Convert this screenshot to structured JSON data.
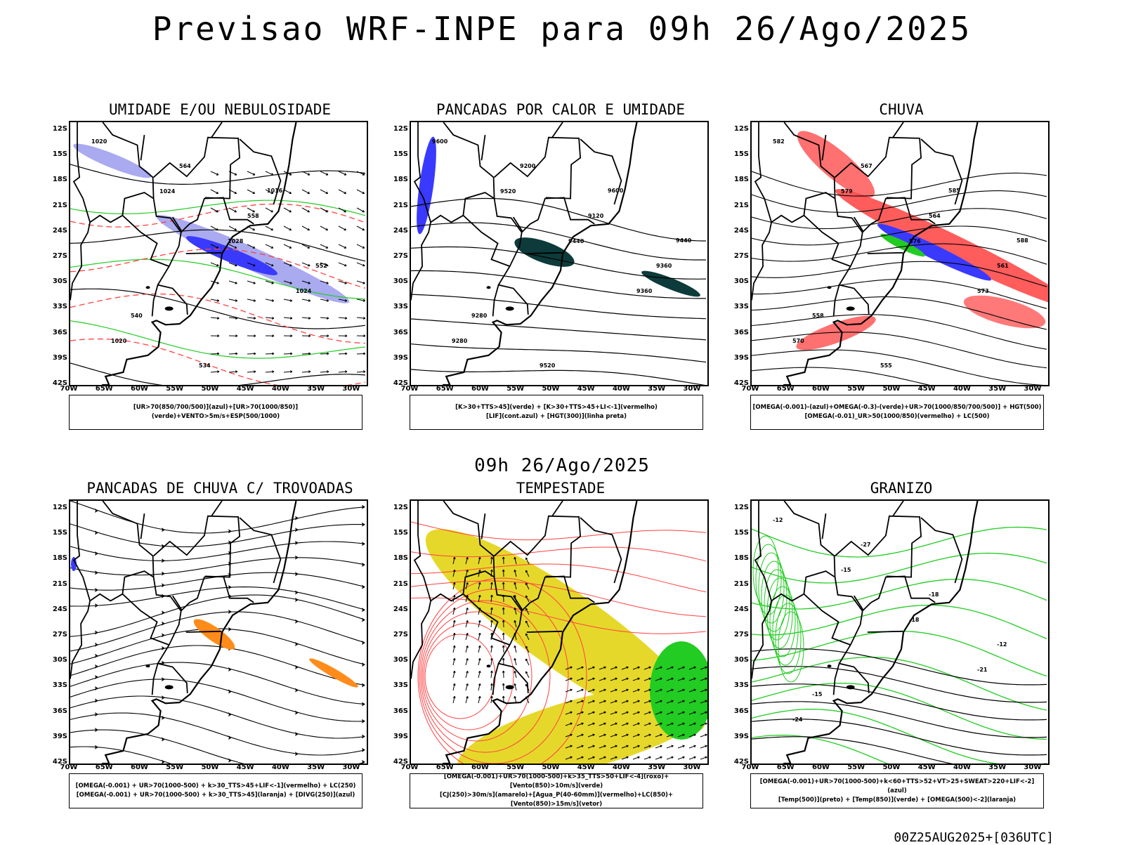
{
  "title": "Previsao WRF-INPE  para 09h 26/Ago/2025",
  "mid_date": "09h 26/Ago/2025",
  "footer": "00Z25AUG2025+[036UTC]",
  "lat_labels": [
    "12S",
    "15S",
    "18S",
    "21S",
    "24S",
    "27S",
    "30S",
    "33S",
    "36S",
    "39S",
    "42S"
  ],
  "lon_labels": [
    "70W",
    "65W",
    "60W",
    "55W",
    "50W",
    "45W",
    "40W",
    "35W",
    "30W"
  ],
  "colors": {
    "blue": "#3a3aff",
    "lavender": "#aaaaf0",
    "green": "#22cc22",
    "red": "#ff4040",
    "darkteal": "#0d3b3b",
    "orange": "#ff8c1a",
    "yellow": "#e6d82a"
  },
  "panels": [
    {
      "id": "umidade",
      "title": "UMIDADE E/OU NEBULOSIDADE",
      "legend": [
        "[UR>70(850/700/500)](azul)+[UR>70(1000/850)](verde)+VENTO>5m/s+ESP(500/1000)"
      ],
      "contour_labels": [
        "1020",
        "1024",
        "1028",
        "1024",
        "1020",
        "564",
        "558",
        "552",
        "540",
        "534",
        "1016"
      ]
    },
    {
      "id": "pancadas",
      "title": "PANCADAS POR CALOR E UMIDADE",
      "legend": [
        "[K>30+TTS>45](verde) + [K>30+TTS>45+LI<-1](vermelho)",
        "[LIF](cont.azul) + [HGT(300)](linha preta)"
      ],
      "contour_labels": [
        "9600",
        "9520",
        "9440",
        "9360",
        "9280",
        "9200",
        "9120",
        "9360",
        "9280",
        "9520",
        "9600",
        "9440"
      ]
    },
    {
      "id": "chuva",
      "title": "CHUVA",
      "legend": [
        "[OMEGA(-0.001)-(azul)+OMEGA(-0.3)-(verde)+UR>70(1000/850/700/500)] + HGT(500)",
        "[OMEGA(-0.01)_UR>50(1000/850)(vermelho) + LC(500)"
      ],
      "contour_labels": [
        "582",
        "579",
        "576",
        "573",
        "570",
        "567",
        "564",
        "561",
        "558",
        "555",
        "585",
        "588"
      ]
    },
    {
      "id": "trovoadas",
      "title": "PANCADAS DE CHUVA C/ TROVOADAS",
      "legend": [
        "[OMEGA(-0.001) + UR>70(1000-500) + k>30_TTS>45+LIF<-1](vermelho) + LC(250)",
        "[OMEGA(-0.001) + UR>70(1000-500) + k>30_TTS>45](laranja) + [DIVG(250)](azul)"
      ]
    },
    {
      "id": "tempestade",
      "title": "TEMPESTADE",
      "legend": [
        "[OMEGA(-0.001)+UR>70(1000-500)+k>35_TTS>50+LIF<-4](roxo)+[Vento(850)>10m/s](verde)",
        "[CJ(250)>30m/s](amarelo)+[Agua_P(40-60mm)](vermelho)+LC(850)+[Vento(850)>15m/s](vetor)"
      ]
    },
    {
      "id": "granizo",
      "title": "GRANIZO",
      "legend": [
        "[OMEGA(-0.001)+UR>70(1000-500)+k<60+TTS>52+VT>25+SWEAT>220+LIF<-2](azul)",
        "[Temp(500)](preto) + [Temp(850)](verde) + [OMEGA(500)<-2](laranja)"
      ],
      "contour_labels": [
        "-12",
        "-15",
        "-18",
        "-21",
        "-24",
        "-27",
        "-18",
        "-12",
        "-15"
      ]
    }
  ]
}
